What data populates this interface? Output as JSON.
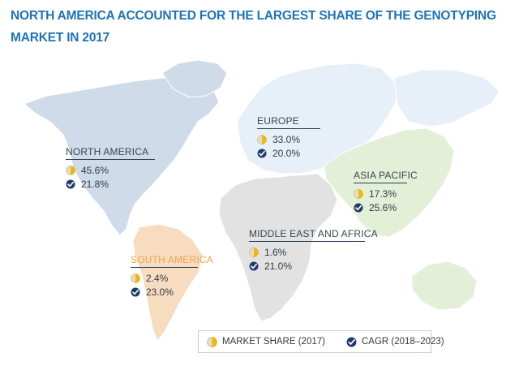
{
  "title": "NORTH AMERICA ACCOUNTED FOR THE LARGEST SHARE OF THE GENOTYPING MARKET IN 2017",
  "colors": {
    "title": "#1f73b7",
    "north_america": "#cfdbe9",
    "south_america": "#f7dcc0",
    "europe": "#e7f0f8",
    "asia_pacific": "#e3efd6",
    "middle_east_africa": "#e2e2e2",
    "oceania": "#e3efd6",
    "market_share_icon": "#f5b800",
    "cagr_icon": "#1f3b6b",
    "south_america_label": "#f5a347"
  },
  "regions": {
    "north_america": {
      "name": "NORTH AMERICA",
      "market_share": "45.6%",
      "cagr": "21.8%"
    },
    "europe": {
      "name": "EUROPE",
      "market_share": "33.0%",
      "cagr": "20.0%"
    },
    "asia_pacific": {
      "name": "ASIA PACIFIC",
      "market_share": "17.3%",
      "cagr": "25.6%"
    },
    "middle_east_africa": {
      "name": "MIDDLE EAST AND AFRICA",
      "market_share": "1.6%",
      "cagr": "21.0%"
    },
    "south_america": {
      "name": "SOUTH AMERICA",
      "market_share": "2.4%",
      "cagr": "23.0%"
    }
  },
  "legend": {
    "market_share": "MARKET SHARE (2017)",
    "cagr": "CAGR (2018–2023)"
  },
  "icons": {
    "market_share": "pie-chart-icon",
    "cagr": "check-mark-icon"
  }
}
